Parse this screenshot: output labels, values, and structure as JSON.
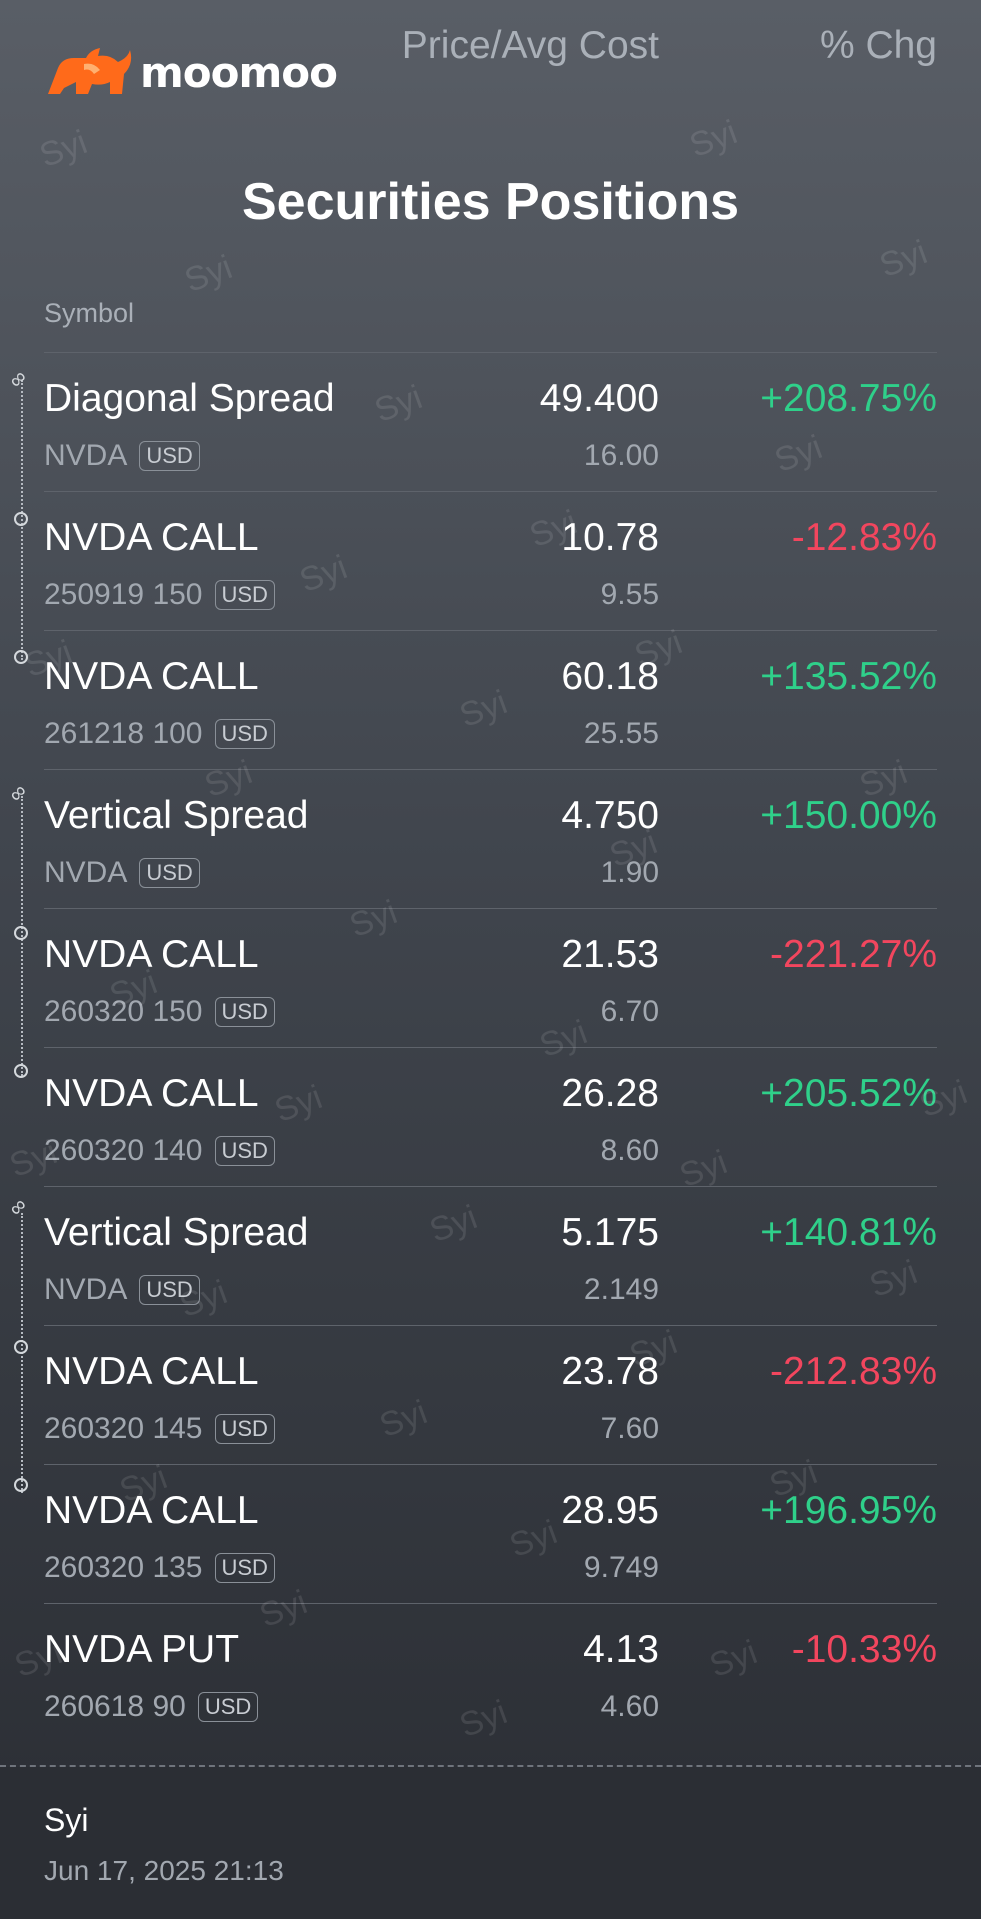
{
  "header": {
    "logo_text": "moomoo",
    "logo_color": "#ff6a1a",
    "title": "Securities Positions"
  },
  "columns": {
    "symbol": "Symbol",
    "price": "Price/Avg Cost",
    "chg": "% Chg"
  },
  "positions": [
    {
      "name": "Diagonal Spread",
      "sub": "NVDA",
      "currency": "USD",
      "price": "49.400",
      "avg": "16.00",
      "chg": "+208.75%",
      "dir": "pos",
      "marker": "link"
    },
    {
      "name": "NVDA CALL",
      "sub": "250919 150",
      "currency": "USD",
      "price": "10.78",
      "avg": "9.55",
      "chg": "-12.83%",
      "dir": "neg",
      "marker": "leg"
    },
    {
      "name": "NVDA CALL",
      "sub": "261218 100",
      "currency": "USD",
      "price": "60.18",
      "avg": "25.55",
      "chg": "+135.52%",
      "dir": "pos",
      "marker": "leg"
    },
    {
      "name": "Vertical Spread",
      "sub": "NVDA",
      "currency": "USD",
      "price": "4.750",
      "avg": "1.90",
      "chg": "+150.00%",
      "dir": "pos",
      "marker": "link"
    },
    {
      "name": "NVDA CALL",
      "sub": "260320 150",
      "currency": "USD",
      "price": "21.53",
      "avg": "6.70",
      "chg": "-221.27%",
      "dir": "neg",
      "marker": "leg"
    },
    {
      "name": "NVDA CALL",
      "sub": "260320 140",
      "currency": "USD",
      "price": "26.28",
      "avg": "8.60",
      "chg": "+205.52%",
      "dir": "pos",
      "marker": "leg"
    },
    {
      "name": "Vertical Spread",
      "sub": "NVDA",
      "currency": "USD",
      "price": "5.175",
      "avg": "2.149",
      "chg": "+140.81%",
      "dir": "pos",
      "marker": "link"
    },
    {
      "name": "NVDA CALL",
      "sub": "260320 145",
      "currency": "USD",
      "price": "23.78",
      "avg": "7.60",
      "chg": "-212.83%",
      "dir": "neg",
      "marker": "leg"
    },
    {
      "name": "NVDA CALL",
      "sub": "260320 135",
      "currency": "USD",
      "price": "28.95",
      "avg": "9.749",
      "chg": "+196.95%",
      "dir": "pos",
      "marker": "leg"
    },
    {
      "name": "NVDA PUT",
      "sub": "260618 90",
      "currency": "USD",
      "price": "4.13",
      "avg": "4.60",
      "chg": "-10.33%",
      "dir": "neg",
      "marker": "none"
    }
  ],
  "footer": {
    "user": "Syi",
    "timestamp": "Jun 17, 2025 21:13"
  },
  "watermark": "Syi",
  "colors": {
    "positive": "#2fd08a",
    "negative": "#f2465e"
  }
}
